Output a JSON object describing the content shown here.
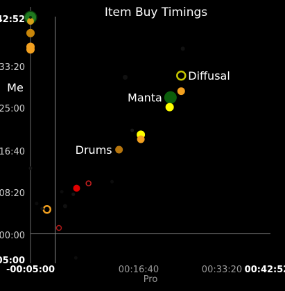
{
  "chart_data": {
    "type": "scatter",
    "title": "Item Buy Timings",
    "xlabel": "Pro",
    "ylabel": "Me",
    "x_unit": "mm:ss",
    "y_unit": "mm:ss",
    "xlim": [
      -300,
      2572
    ],
    "ylim": [
      -300,
      2572
    ],
    "x_ticks": [
      "-00:05:00",
      "00:16:40",
      "00:33:20",
      "00:42:52"
    ],
    "y_ticks": [
      "42:52",
      "33:20",
      "25:00",
      "16:40",
      "08:20",
      "00:00",
      "05:00"
    ],
    "reference_lines": [
      {
        "axis": "x",
        "value": 0
      },
      {
        "axis": "y",
        "value": 0
      }
    ],
    "annotations": [
      {
        "label": "Diffusal",
        "x": 1460,
        "y": 1878
      },
      {
        "label": "Manta",
        "x": 1350,
        "y": 1605
      },
      {
        "label": "Drums",
        "x": 660,
        "y": 840
      }
    ],
    "points": [
      {
        "x": -300,
        "y": 2572,
        "color": "#1f7a1f",
        "size": 8,
        "style": "filled",
        "ring": "#0a3d0a"
      },
      {
        "x": -300,
        "y": 2525,
        "color": "#d4a017",
        "size": 5,
        "style": "filled"
      },
      {
        "x": -300,
        "y": 2385,
        "color": "#c8860a",
        "size": 6,
        "style": "filled"
      },
      {
        "x": -300,
        "y": 2222,
        "color": "#f2a020",
        "size": 6,
        "style": "filled"
      },
      {
        "x": -300,
        "y": 2190,
        "color": "#f2a020",
        "size": 6,
        "style": "filled"
      },
      {
        "x": 1530,
        "y": 1880,
        "color": "#c8c800",
        "size": 6,
        "style": "ring"
      },
      {
        "x": 1530,
        "y": 1695,
        "color": "#f2a020",
        "size": 5.5,
        "style": "filled"
      },
      {
        "x": 1400,
        "y": 1620,
        "color": "#0b5e0b",
        "size": 9,
        "style": "filled"
      },
      {
        "x": 1390,
        "y": 1505,
        "color": "#ffff00",
        "size": 6,
        "style": "filled"
      },
      {
        "x": 1040,
        "y": 1178,
        "color": "#ffff00",
        "size": 6,
        "style": "filled"
      },
      {
        "x": 1040,
        "y": 1124,
        "color": "#f2a020",
        "size": 5.5,
        "style": "filled"
      },
      {
        "x": 775,
        "y": 1000,
        "color": "#b7760e",
        "size": 5.5,
        "style": "filled"
      },
      {
        "x": 260,
        "y": 542,
        "color": "#e00000",
        "size": 5,
        "style": "filled"
      },
      {
        "x": 405,
        "y": 600,
        "color": "#cc2020",
        "size": 3.5,
        "style": "ring"
      },
      {
        "x": -100,
        "y": 290,
        "color": "#f2a020",
        "size": 5,
        "style": "ring"
      },
      {
        "x": 45,
        "y": 70,
        "color": "#b01818",
        "size": 3.5,
        "style": "ring"
      },
      {
        "x": 1550,
        "y": 2200,
        "color": "#111111",
        "size": 3,
        "style": "filled"
      },
      {
        "x": 850,
        "y": 1860,
        "color": "#111111",
        "size": 3.5,
        "style": "filled"
      },
      {
        "x": 935,
        "y": 1230,
        "color": "#181818",
        "size": 2.5,
        "style": "filled"
      },
      {
        "x": -300,
        "y": 780,
        "color": "#141414",
        "size": 2.5,
        "style": "filled"
      },
      {
        "x": 220,
        "y": 470,
        "color": "#151515",
        "size": 2.5,
        "style": "filled"
      },
      {
        "x": 120,
        "y": 330,
        "color": "#101010",
        "size": 3,
        "style": "filled"
      },
      {
        "x": -160,
        "y": 300,
        "color": "#121212",
        "size": 2.5,
        "style": "filled"
      },
      {
        "x": 80,
        "y": 500,
        "color": "#0c0c0c",
        "size": 2.5,
        "style": "filled"
      },
      {
        "x": 690,
        "y": 620,
        "color": "#0c0c0c",
        "size": 2.5,
        "style": "filled"
      },
      {
        "x": -225,
        "y": 360,
        "color": "#0c0c0c",
        "size": 2.5,
        "style": "filled"
      },
      {
        "x": 250,
        "y": -285,
        "color": "#0c0c0c",
        "size": 2.5,
        "style": "filled"
      }
    ]
  }
}
